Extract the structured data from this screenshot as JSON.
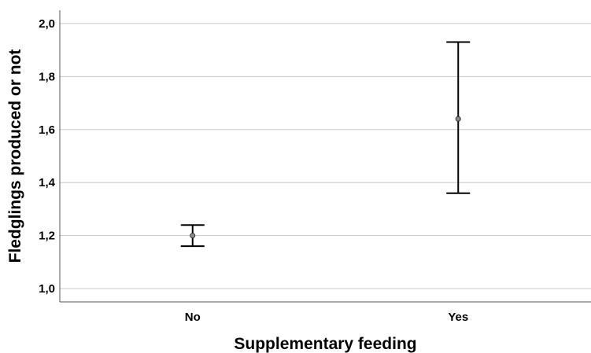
{
  "chart_data": {
    "type": "errorbar",
    "xlabel": "Supplementary feeding",
    "ylabel": "Fledglings produced or not",
    "categories": [
      "No",
      "Yes"
    ],
    "series": [
      {
        "values": [
          1.2,
          1.64
        ],
        "lower": [
          1.16,
          1.36
        ],
        "upper": [
          1.24,
          1.93
        ]
      }
    ],
    "ylim": [
      0.95,
      2.05
    ],
    "yticks": [
      1.0,
      1.2,
      1.4,
      1.6,
      1.8,
      2.0
    ],
    "ytick_labels": [
      "1,0",
      "1,2",
      "1,4",
      "1,6",
      "1,8",
      "2,0"
    ],
    "grid": "horizontal",
    "colors": {
      "gridline": "#c8c8c8",
      "axis": "#555555",
      "errorbar": "#000000",
      "point_fill": "#8a8a8a"
    }
  }
}
